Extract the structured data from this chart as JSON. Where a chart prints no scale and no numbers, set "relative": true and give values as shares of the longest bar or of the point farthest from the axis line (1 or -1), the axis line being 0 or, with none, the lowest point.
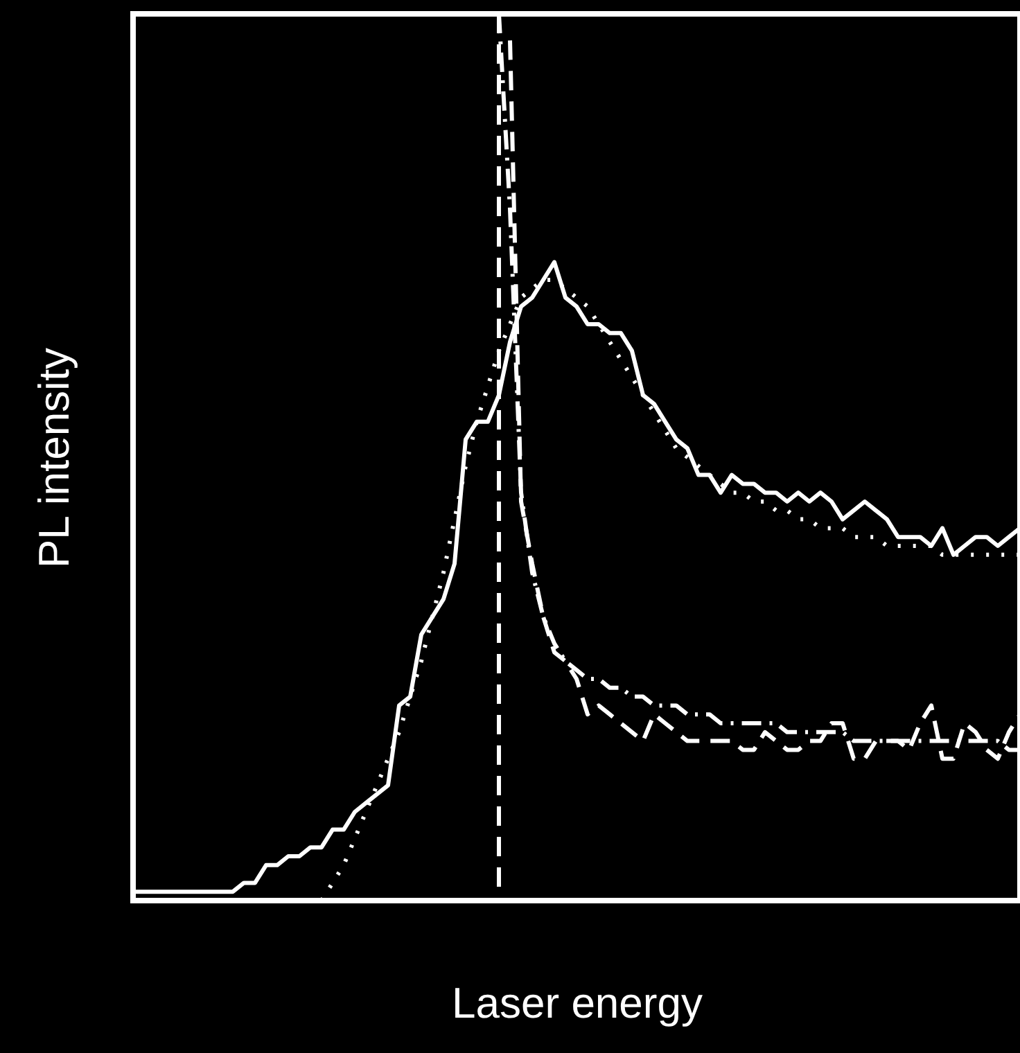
{
  "chart_data": {
    "type": "line",
    "relative": true,
    "xlabel": "Laser energy",
    "ylabel": "PL intensity",
    "grid": false,
    "categories": [
      null,
      null,
      null,
      null,
      null,
      null,
      null,
      null,
      null,
      null,
      null,
      null,
      null,
      null,
      null,
      null,
      null,
      null,
      null,
      null,
      null,
      null,
      null,
      null,
      null,
      null,
      null,
      null,
      null,
      null,
      null,
      null,
      null,
      null,
      null,
      null,
      null,
      null,
      null,
      null,
      null,
      null,
      null,
      null,
      null,
      null,
      null,
      null,
      null,
      null,
      null,
      null,
      null,
      null,
      null,
      null,
      null,
      null,
      null,
      null,
      null,
      null,
      null,
      null,
      null,
      null,
      null,
      null,
      null,
      null,
      null,
      null,
      null,
      null,
      null,
      null,
      null,
      null,
      null,
      null,
      null
    ],
    "series": [
      {
        "color": "#ffffff",
        "line_style": "solid",
        "values": [
          0.01,
          0.01,
          0.01,
          0.01,
          0.01,
          0.01,
          0.01,
          0.01,
          0.01,
          0.01,
          0.02,
          0.02,
          0.04,
          0.04,
          0.05,
          0.05,
          0.06,
          0.06,
          0.08,
          0.08,
          0.1,
          0.11,
          0.12,
          0.13,
          0.22,
          0.23,
          0.3,
          0.32,
          0.34,
          0.38,
          0.52,
          0.54,
          0.54,
          0.57,
          0.63,
          0.67,
          0.68,
          0.7,
          0.72,
          0.68,
          0.67,
          0.65,
          0.65,
          0.64,
          0.64,
          0.62,
          0.57,
          0.56,
          0.54,
          0.52,
          0.51,
          0.48,
          0.48,
          0.46,
          0.48,
          0.47,
          0.47,
          0.46,
          0.46,
          0.45,
          0.46,
          0.45,
          0.46,
          0.45,
          0.43,
          0.44,
          0.45,
          0.44,
          0.43,
          0.41,
          0.41,
          0.41,
          0.4,
          0.42,
          0.39,
          0.4,
          0.41,
          0.41,
          0.4,
          0.41,
          0.42
        ]
      },
      {
        "color": "#ffffff",
        "line_style": "dotted",
        "values": [
          null,
          null,
          null,
          null,
          null,
          null,
          null,
          null,
          null,
          null,
          null,
          null,
          null,
          null,
          null,
          null,
          null,
          0.0,
          0.02,
          0.04,
          0.07,
          0.1,
          0.13,
          0.16,
          0.19,
          0.23,
          0.27,
          0.32,
          0.37,
          0.43,
          0.49,
          0.54,
          0.58,
          0.62,
          0.65,
          0.68,
          0.69,
          0.7,
          0.7,
          0.69,
          0.68,
          0.67,
          0.65,
          0.63,
          0.61,
          0.59,
          0.57,
          0.55,
          0.53,
          0.51,
          0.5,
          0.49,
          0.48,
          0.47,
          0.46,
          0.46,
          0.45,
          0.45,
          0.44,
          0.44,
          0.43,
          0.43,
          0.42,
          0.42,
          0.42,
          0.41,
          0.41,
          0.41,
          0.4,
          0.4,
          0.4,
          0.4,
          0.4,
          0.39,
          0.39,
          0.39,
          0.39,
          0.39,
          0.39,
          0.39,
          0.39
        ]
      },
      {
        "color": "#ffffff",
        "line_style": "dashed",
        "values": [
          null,
          null,
          null,
          null,
          null,
          null,
          null,
          null,
          null,
          null,
          null,
          null,
          null,
          null,
          null,
          null,
          null,
          null,
          null,
          null,
          null,
          null,
          null,
          null,
          null,
          null,
          null,
          null,
          null,
          null,
          null,
          null,
          null,
          null,
          0.97,
          0.45,
          0.38,
          0.32,
          0.28,
          0.27,
          0.25,
          0.21,
          0.22,
          0.21,
          0.2,
          0.19,
          0.18,
          0.21,
          0.2,
          0.19,
          0.18,
          0.18,
          0.18,
          0.18,
          0.18,
          0.17,
          0.17,
          0.19,
          0.18,
          0.17,
          0.17,
          0.18,
          0.18,
          0.2,
          0.2,
          0.16,
          0.16,
          0.18,
          0.18,
          0.18,
          0.17,
          0.2,
          0.22,
          0.16,
          0.16,
          0.2,
          0.19,
          0.17,
          0.16,
          0.19,
          0.21
        ]
      },
      {
        "color": "#ffffff",
        "line_style": "dashdot",
        "values": [
          null,
          null,
          null,
          null,
          null,
          null,
          null,
          null,
          null,
          null,
          null,
          null,
          null,
          null,
          null,
          null,
          null,
          null,
          null,
          null,
          null,
          null,
          null,
          null,
          null,
          null,
          null,
          null,
          null,
          null,
          null,
          null,
          null,
          1.0,
          0.78,
          0.46,
          0.37,
          0.32,
          0.29,
          0.27,
          0.26,
          0.25,
          0.25,
          0.24,
          0.24,
          0.23,
          0.23,
          0.22,
          0.22,
          0.22,
          0.21,
          0.21,
          0.21,
          0.2,
          0.2,
          0.2,
          0.2,
          0.2,
          0.2,
          0.19,
          0.19,
          0.19,
          0.19,
          0.19,
          0.19,
          0.18,
          0.18,
          0.18,
          0.18,
          0.18,
          0.18,
          0.18,
          0.18,
          0.18,
          0.18,
          0.18,
          0.18,
          0.18,
          0.18,
          0.17,
          0.17
        ]
      }
    ]
  }
}
